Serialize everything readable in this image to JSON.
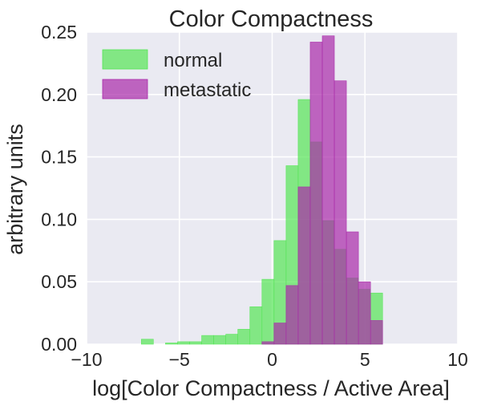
{
  "chart_data": {
    "type": "bar",
    "title": "Color Compactness",
    "xlabel": "log[Color Compactness / Active Area]",
    "ylabel": "arbitrary units",
    "xlim": [
      -10,
      10
    ],
    "ylim": [
      0,
      0.25
    ],
    "xticks": [
      -10,
      -5,
      0,
      5,
      10
    ],
    "xtick_labels": [
      "−10",
      "−5",
      "0",
      "5",
      "10"
    ],
    "yticks": [
      0,
      0.05,
      0.1,
      0.15,
      0.2,
      0.25
    ],
    "ytick_labels": [
      "0.00",
      "0.05",
      "0.10",
      "0.15",
      "0.20",
      "0.25"
    ],
    "grid": true,
    "legend_position": "top-left",
    "bin_width": 0.65,
    "series": [
      {
        "name": "normal",
        "color": "#55e555",
        "opacity": 0.7,
        "bins": [
          {
            "x0": -7.05,
            "value": 0.004
          },
          {
            "x0": -6.4,
            "value": 0.0
          },
          {
            "x0": -5.75,
            "value": 0.001
          },
          {
            "x0": -5.1,
            "value": 0.002
          },
          {
            "x0": -4.45,
            "value": 0.002
          },
          {
            "x0": -3.8,
            "value": 0.007
          },
          {
            "x0": -3.15,
            "value": 0.007
          },
          {
            "x0": -2.5,
            "value": 0.008
          },
          {
            "x0": -1.85,
            "value": 0.012
          },
          {
            "x0": -1.2,
            "value": 0.03
          },
          {
            "x0": -0.55,
            "value": 0.052
          },
          {
            "x0": 0.1,
            "value": 0.083
          },
          {
            "x0": 0.75,
            "value": 0.143
          },
          {
            "x0": 1.4,
            "value": 0.196
          },
          {
            "x0": 2.05,
            "value": 0.162
          },
          {
            "x0": 2.7,
            "value": 0.099
          },
          {
            "x0": 3.35,
            "value": 0.076
          },
          {
            "x0": 4.0,
            "value": 0.053
          },
          {
            "x0": 4.65,
            "value": 0.044
          },
          {
            "x0": 5.3,
            "value": 0.041
          }
        ]
      },
      {
        "name": "metastatic",
        "color": "#aa2aaa",
        "opacity": 0.7,
        "bins": [
          {
            "x0": -0.55,
            "value": 0.002
          },
          {
            "x0": 0.1,
            "value": 0.017
          },
          {
            "x0": 0.75,
            "value": 0.047
          },
          {
            "x0": 1.4,
            "value": 0.126
          },
          {
            "x0": 2.05,
            "value": 0.242
          },
          {
            "x0": 2.7,
            "value": 0.247
          },
          {
            "x0": 3.35,
            "value": 0.211
          },
          {
            "x0": 4.0,
            "value": 0.09
          },
          {
            "x0": 4.65,
            "value": 0.05
          },
          {
            "x0": 5.3,
            "value": 0.019
          }
        ]
      }
    ]
  },
  "colors": {
    "plot_background": "#eaeaf2",
    "grid": "#ffffff",
    "text": "#262626"
  }
}
